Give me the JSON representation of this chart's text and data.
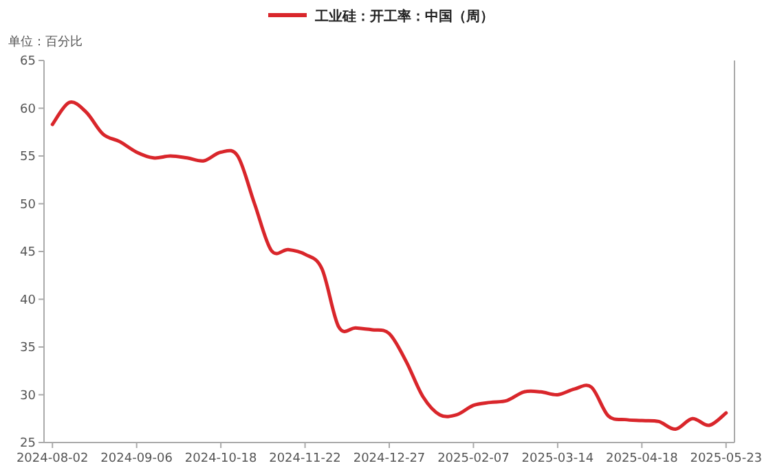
{
  "chart_data": {
    "type": "line",
    "categories": [
      "2024-08-02",
      null,
      null,
      null,
      null,
      "2024-09-06",
      null,
      null,
      null,
      null,
      "2024-10-18",
      null,
      null,
      null,
      null,
      "2024-11-22",
      null,
      null,
      null,
      null,
      "2024-12-27",
      null,
      null,
      null,
      null,
      "2025-02-07",
      null,
      null,
      null,
      null,
      "2025-03-14",
      null,
      null,
      null,
      null,
      "2025-04-18",
      null,
      null,
      null,
      null,
      "2025-05-23"
    ],
    "series": [
      {
        "name": "工业硅：开工率：中国（周）",
        "color": "#d9262b",
        "values": [
          58.3,
          60.6,
          59.6,
          57.3,
          56.5,
          55.4,
          54.8,
          55.0,
          54.8,
          54.5,
          55.4,
          55.0,
          50.0,
          45.1,
          45.2,
          44.7,
          43.2,
          37.1,
          37.0,
          36.8,
          36.4,
          33.5,
          29.8,
          27.9,
          27.9,
          28.9,
          29.2,
          29.4,
          30.3,
          30.3,
          30.0,
          30.6,
          30.8,
          27.8,
          27.4,
          27.3,
          27.2,
          26.4,
          27.5,
          26.8,
          28.1
        ]
      }
    ],
    "ylim": [
      25,
      65
    ],
    "yticks": [
      25,
      30,
      35,
      40,
      45,
      50,
      55,
      60,
      65
    ],
    "legend": "top",
    "annotations": [
      "单位：百分比"
    ]
  }
}
